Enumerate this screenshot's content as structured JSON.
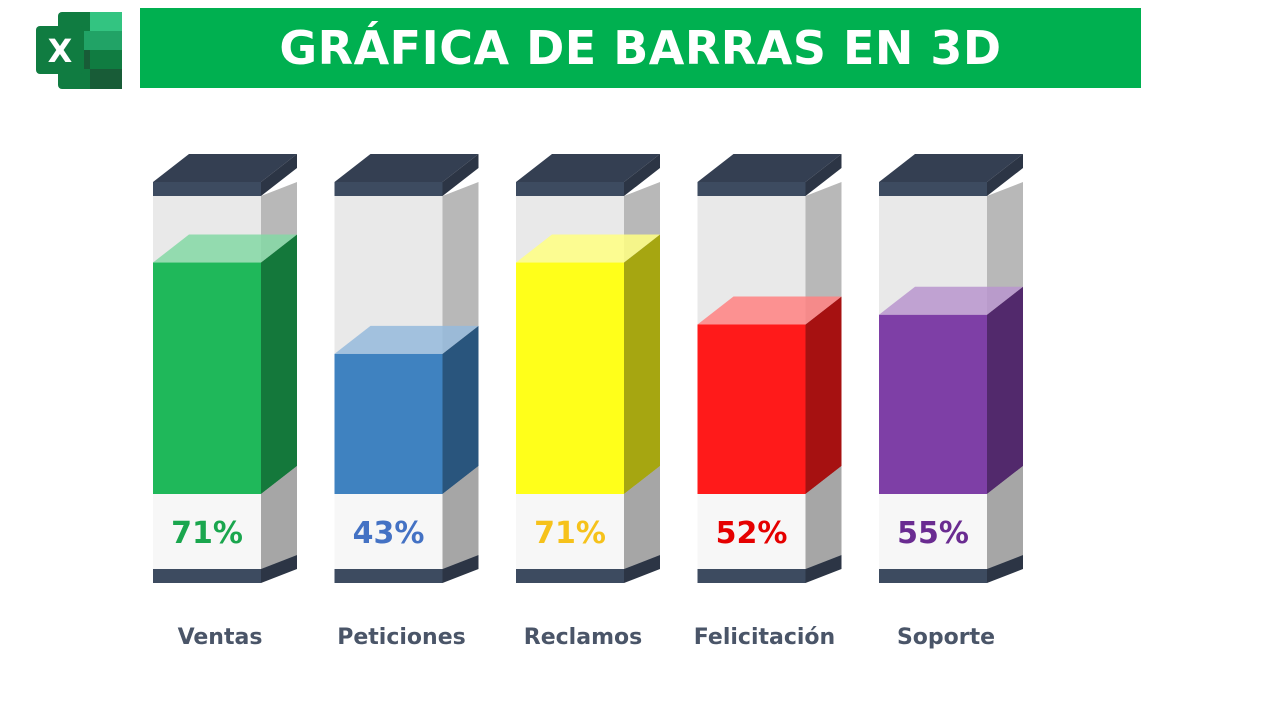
{
  "header": {
    "title": "GRÁFICA DE BARRAS EN 3D",
    "logo_icon": "excel-logo-icon",
    "logo_letter": "X"
  },
  "chart_data": {
    "type": "bar",
    "title": "GRÁFICA DE BARRAS EN 3D",
    "categories": [
      "Ventas",
      "Peticiones",
      "Reclamos",
      "Felicitación",
      "Soporte"
    ],
    "values": [
      71,
      43,
      71,
      52,
      55
    ],
    "value_labels": [
      "71%",
      "43%",
      "71%",
      "52%",
      "55%"
    ],
    "ylim": [
      0,
      100
    ],
    "style": "3d-cylinder-column",
    "colors": {
      "Ventas": "#1fb85a",
      "Peticiones": "#3f82c0",
      "Reclamos": "#ffff1a",
      "Felicitación": "#ff1a1a",
      "Soporte": "#7e3fa6"
    },
    "label_colors": {
      "Ventas": "#1aa64e",
      "Peticiones": "#4472c4",
      "Reclamos": "#f6c21b",
      "Felicitación": "#e50000",
      "Soporte": "#6a2c91"
    },
    "cap_color": "#3d4b60",
    "container_color": "#e9e9e9"
  }
}
